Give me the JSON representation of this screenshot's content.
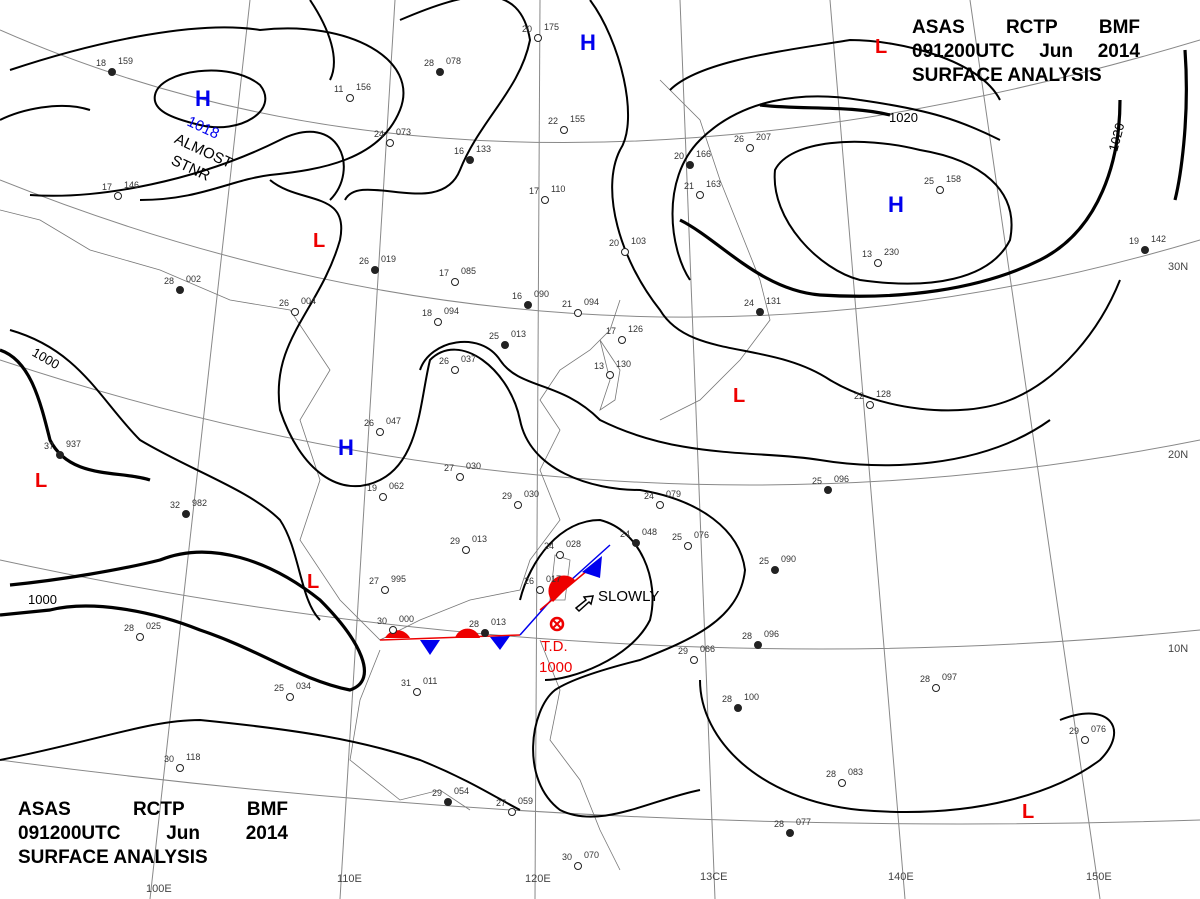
{
  "title_top": {
    "line1": [
      "ASAS",
      "RCTP",
      "BMF"
    ],
    "line2": [
      "091200UTC",
      "Jun",
      "2014"
    ],
    "line3": "SURFACE ANALYSIS"
  },
  "title_bottom": {
    "line1": [
      "ASAS",
      "RCTP",
      "BMF"
    ],
    "line2": [
      "091200UTC",
      "Jun",
      "2014"
    ],
    "line3": "SURFACE ANALYSIS"
  },
  "colors": {
    "high": "#0000ee",
    "low": "#ee0000",
    "warm_front": "#ee0000",
    "cold_front": "#0000ee",
    "isobar": "#000000",
    "grid": "#888888"
  },
  "lat_labels": [
    "30N",
    "20N",
    "10N"
  ],
  "lon_labels": [
    "100E",
    "110E",
    "120E",
    "13CE",
    "140E",
    "150E"
  ],
  "isobar_labels": [
    "1000",
    "1000",
    "1020",
    "1020"
  ],
  "pressure_centers": {
    "highs": [
      {
        "symbol": "H",
        "value": "1018",
        "note_line1": "ALMOST",
        "note_line2": "STNR"
      },
      {
        "symbol": "H"
      },
      {
        "symbol": "H"
      },
      {
        "symbol": "H"
      }
    ],
    "lows": [
      {
        "symbol": "L"
      },
      {
        "symbol": "L"
      },
      {
        "symbol": "L"
      },
      {
        "symbol": "L"
      },
      {
        "symbol": "L"
      },
      {
        "symbol": "L"
      }
    ],
    "tropical_depression": {
      "label": "T.D.",
      "value": "1000",
      "motion": "SLOWLY"
    }
  },
  "stations": [
    {
      "temp": "18",
      "pres": "159"
    },
    {
      "temp": "11",
      "pres": "156"
    },
    {
      "temp": "20",
      "pres": "175"
    },
    {
      "temp": "28",
      "pres": "078"
    },
    {
      "temp": "24",
      "pres": "073"
    },
    {
      "temp": "22",
      "pres": "155"
    },
    {
      "temp": "16",
      "pres": "133"
    },
    {
      "temp": "17",
      "pres": "146"
    },
    {
      "temp": "17",
      "pres": "110"
    },
    {
      "temp": "20",
      "pres": "166"
    },
    {
      "temp": "21",
      "pres": "163"
    },
    {
      "temp": "26",
      "pres": "207"
    },
    {
      "temp": "26",
      "pres": "019"
    },
    {
      "temp": "17",
      "pres": "085"
    },
    {
      "temp": "20",
      "pres": "103"
    },
    {
      "temp": "28",
      "pres": "002"
    },
    {
      "temp": "26",
      "pres": "004"
    },
    {
      "temp": "18",
      "pres": "094"
    },
    {
      "temp": "16",
      "pres": "090"
    },
    {
      "temp": "21",
      "pres": "094"
    },
    {
      "temp": "17",
      "pres": "126"
    },
    {
      "temp": "25",
      "pres": "013"
    },
    {
      "temp": "26",
      "pres": "037"
    },
    {
      "temp": "13",
      "pres": "130"
    },
    {
      "temp": "24",
      "pres": "131"
    },
    {
      "temp": "22",
      "pres": "128"
    },
    {
      "temp": "26",
      "pres": "047"
    },
    {
      "temp": "37",
      "pres": "937"
    },
    {
      "temp": "27",
      "pres": "030"
    },
    {
      "temp": "19",
      "pres": "062"
    },
    {
      "temp": "32",
      "pres": "982"
    },
    {
      "temp": "29",
      "pres": "030"
    },
    {
      "temp": "24",
      "pres": "079"
    },
    {
      "temp": "25",
      "pres": "096"
    },
    {
      "temp": "29",
      "pres": "013"
    },
    {
      "temp": "24",
      "pres": "028"
    },
    {
      "temp": "24",
      "pres": "048"
    },
    {
      "temp": "25",
      "pres": "076"
    },
    {
      "temp": "26",
      "pres": "017"
    },
    {
      "temp": "25",
      "pres": "090"
    },
    {
      "temp": "27",
      "pres": "995"
    },
    {
      "temp": "30",
      "pres": "000"
    },
    {
      "temp": "28",
      "pres": "013"
    },
    {
      "temp": "28",
      "pres": "025"
    },
    {
      "temp": "29",
      "pres": "066"
    },
    {
      "temp": "28",
      "pres": "096"
    },
    {
      "temp": "31",
      "pres": "011"
    },
    {
      "temp": "25",
      "pres": "034"
    },
    {
      "temp": "28",
      "pres": "100"
    },
    {
      "temp": "28",
      "pres": "097"
    },
    {
      "temp": "30",
      "pres": "118"
    },
    {
      "temp": "29",
      "pres": "054"
    },
    {
      "temp": "27",
      "pres": "059"
    },
    {
      "temp": "28",
      "pres": "083"
    },
    {
      "temp": "28",
      "pres": "077"
    },
    {
      "temp": "30",
      "pres": "070"
    },
    {
      "temp": "29",
      "pres": "076"
    },
    {
      "temp": "19",
      "pres": "142"
    },
    {
      "temp": "25",
      "pres": "158"
    },
    {
      "temp": "13",
      "pres": "230"
    }
  ]
}
